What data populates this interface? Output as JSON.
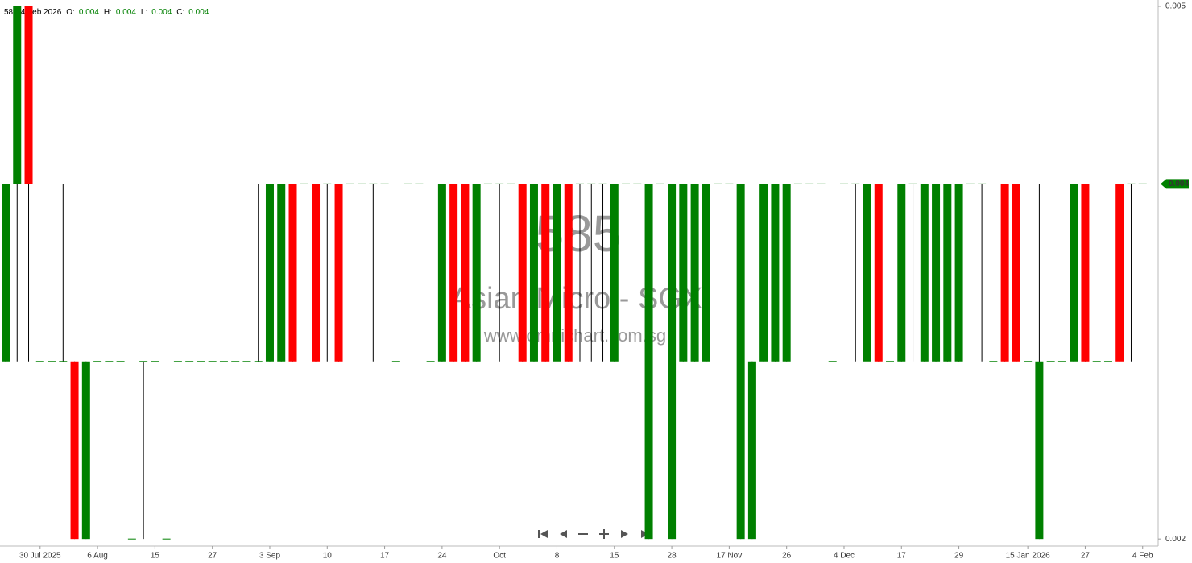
{
  "chart_data": {
    "type": "candlestick",
    "header": {
      "symbol": "585",
      "date": "4 Feb 2026",
      "fields": [
        {
          "label": "O:",
          "value": 0.004
        },
        {
          "label": "H:",
          "value": 0.004
        },
        {
          "label": "L:",
          "value": 0.004
        },
        {
          "label": "C:",
          "value": 0.004
        }
      ]
    },
    "watermark": {
      "code": "585",
      "name": "Asian Micro - SGX",
      "site": "www.omnichart.com.sg"
    },
    "categories": [
      null,
      null,
      null,
      "30 Jul 2025",
      null,
      null,
      null,
      null,
      "6 Aug",
      null,
      null,
      null,
      null,
      "15",
      null,
      null,
      null,
      null,
      "27",
      null,
      null,
      null,
      null,
      "3 Sep",
      null,
      null,
      null,
      null,
      "10",
      null,
      null,
      null,
      null,
      "17",
      null,
      null,
      null,
      null,
      "24",
      null,
      null,
      null,
      null,
      "Oct",
      null,
      null,
      null,
      null,
      "8",
      null,
      null,
      null,
      null,
      "15",
      null,
      null,
      null,
      null,
      "28",
      null,
      null,
      null,
      null,
      "17 Nov",
      null,
      null,
      null,
      null,
      "26",
      null,
      null,
      null,
      null,
      "4 Dec",
      null,
      null,
      null,
      null,
      "17",
      null,
      null,
      null,
      null,
      "29",
      null,
      null,
      null,
      null,
      null,
      "15 Jan 2026",
      null,
      null,
      null,
      null,
      "27",
      null,
      null,
      null,
      null,
      "4 Feb"
    ],
    "open": [
      0.003,
      0.004,
      0.005,
      0.003,
      0.003,
      0.003,
      0.003,
      0.002,
      0.003,
      0.003,
      0.003,
      0.002,
      0.003,
      0.003,
      0.002,
      0.003,
      0.003,
      0.003,
      0.003,
      0.003,
      0.003,
      0.003,
      0.003,
      0.003,
      0.003,
      0.004,
      0.004,
      0.004,
      0.004,
      0.004,
      0.004,
      0.004,
      0.004,
      0.004,
      0.003,
      0.004,
      0.004,
      0.003,
      0.003,
      0.004,
      0.004,
      0.003,
      0.004,
      0.004,
      0.004,
      0.004,
      0.003,
      0.004,
      0.003,
      0.004,
      0.004,
      0.004,
      0.004,
      0.003,
      0.004,
      0.004,
      0.002,
      0.004,
      0.002,
      0.003,
      0.003,
      0.003,
      0.004,
      0.004,
      0.002,
      0.002,
      0.003,
      0.003,
      0.003,
      0.004,
      0.004,
      0.004,
      0.003,
      0.004,
      0.004,
      0.003,
      0.004,
      0.003,
      0.003,
      0.004,
      0.003,
      0.003,
      0.003,
      0.003,
      0.004,
      0.004,
      0.003,
      0.004,
      0.004,
      0.003,
      0.002,
      0.003,
      0.003,
      0.003,
      0.004,
      0.003,
      0.003,
      0.004,
      0.004,
      0.004
    ],
    "high": [
      0.004,
      0.005,
      0.005,
      0.003,
      0.003,
      0.004,
      0.003,
      0.003,
      0.003,
      0.003,
      0.003,
      0.002,
      0.003,
      0.003,
      0.002,
      0.003,
      0.003,
      0.003,
      0.003,
      0.003,
      0.003,
      0.003,
      0.004,
      0.004,
      0.004,
      0.004,
      0.004,
      0.004,
      0.004,
      0.004,
      0.004,
      0.004,
      0.004,
      0.004,
      0.003,
      0.004,
      0.004,
      0.003,
      0.004,
      0.004,
      0.004,
      0.004,
      0.004,
      0.004,
      0.004,
      0.004,
      0.004,
      0.004,
      0.004,
      0.004,
      0.004,
      0.004,
      0.004,
      0.004,
      0.004,
      0.004,
      0.004,
      0.004,
      0.004,
      0.004,
      0.004,
      0.004,
      0.004,
      0.004,
      0.004,
      0.003,
      0.004,
      0.004,
      0.004,
      0.004,
      0.004,
      0.004,
      0.003,
      0.004,
      0.004,
      0.004,
      0.004,
      0.003,
      0.004,
      0.004,
      0.004,
      0.004,
      0.004,
      0.004,
      0.004,
      0.004,
      0.003,
      0.004,
      0.004,
      0.003,
      0.004,
      0.003,
      0.003,
      0.004,
      0.004,
      0.003,
      0.003,
      0.004,
      0.004,
      0.004
    ],
    "low": [
      0.003,
      0.003,
      0.003,
      0.003,
      0.003,
      0.003,
      0.002,
      0.002,
      0.003,
      0.003,
      0.003,
      0.002,
      0.002,
      0.003,
      0.002,
      0.003,
      0.003,
      0.003,
      0.003,
      0.003,
      0.003,
      0.003,
      0.003,
      0.003,
      0.003,
      0.003,
      0.004,
      0.003,
      0.003,
      0.003,
      0.004,
      0.004,
      0.003,
      0.004,
      0.003,
      0.004,
      0.004,
      0.003,
      0.003,
      0.003,
      0.003,
      0.003,
      0.004,
      0.003,
      0.004,
      0.003,
      0.003,
      0.003,
      0.003,
      0.003,
      0.003,
      0.003,
      0.003,
      0.003,
      0.004,
      0.004,
      0.002,
      0.004,
      0.002,
      0.003,
      0.003,
      0.003,
      0.004,
      0.004,
      0.002,
      0.002,
      0.003,
      0.003,
      0.003,
      0.004,
      0.004,
      0.004,
      0.003,
      0.004,
      0.003,
      0.003,
      0.003,
      0.003,
      0.003,
      0.003,
      0.003,
      0.003,
      0.003,
      0.003,
      0.004,
      0.003,
      0.003,
      0.003,
      0.003,
      0.003,
      0.002,
      0.003,
      0.003,
      0.003,
      0.003,
      0.003,
      0.003,
      0.003,
      0.003,
      0.004
    ],
    "close": [
      0.004,
      0.005,
      0.004,
      0.003,
      0.003,
      0.003,
      0.002,
      0.003,
      0.003,
      0.003,
      0.003,
      0.002,
      0.003,
      0.003,
      0.002,
      0.003,
      0.003,
      0.003,
      0.003,
      0.003,
      0.003,
      0.003,
      0.003,
      0.004,
      0.004,
      0.003,
      0.004,
      0.003,
      0.004,
      0.003,
      0.004,
      0.004,
      0.004,
      0.004,
      0.003,
      0.004,
      0.004,
      0.003,
      0.004,
      0.003,
      0.003,
      0.004,
      0.004,
      0.004,
      0.004,
      0.003,
      0.004,
      0.003,
      0.004,
      0.003,
      0.004,
      0.004,
      0.004,
      0.004,
      0.004,
      0.004,
      0.004,
      0.004,
      0.004,
      0.004,
      0.004,
      0.004,
      0.004,
      0.004,
      0.004,
      0.003,
      0.004,
      0.004,
      0.004,
      0.004,
      0.004,
      0.004,
      0.003,
      0.004,
      0.004,
      0.004,
      0.003,
      0.003,
      0.004,
      0.004,
      0.004,
      0.004,
      0.004,
      0.004,
      0.004,
      0.004,
      0.003,
      0.003,
      0.003,
      0.003,
      0.003,
      0.003,
      0.003,
      0.004,
      0.003,
      0.003,
      0.003,
      0.003,
      0.004,
      0.004
    ],
    "up_color": "#008000",
    "down_color": "#ff0000",
    "wick_color": "#000000",
    "ylim": [
      0.00196,
      0.005036
    ],
    "yticks": [
      0.005,
      0.002
    ],
    "last_price": 0.004,
    "last_price_color": "#008000"
  }
}
